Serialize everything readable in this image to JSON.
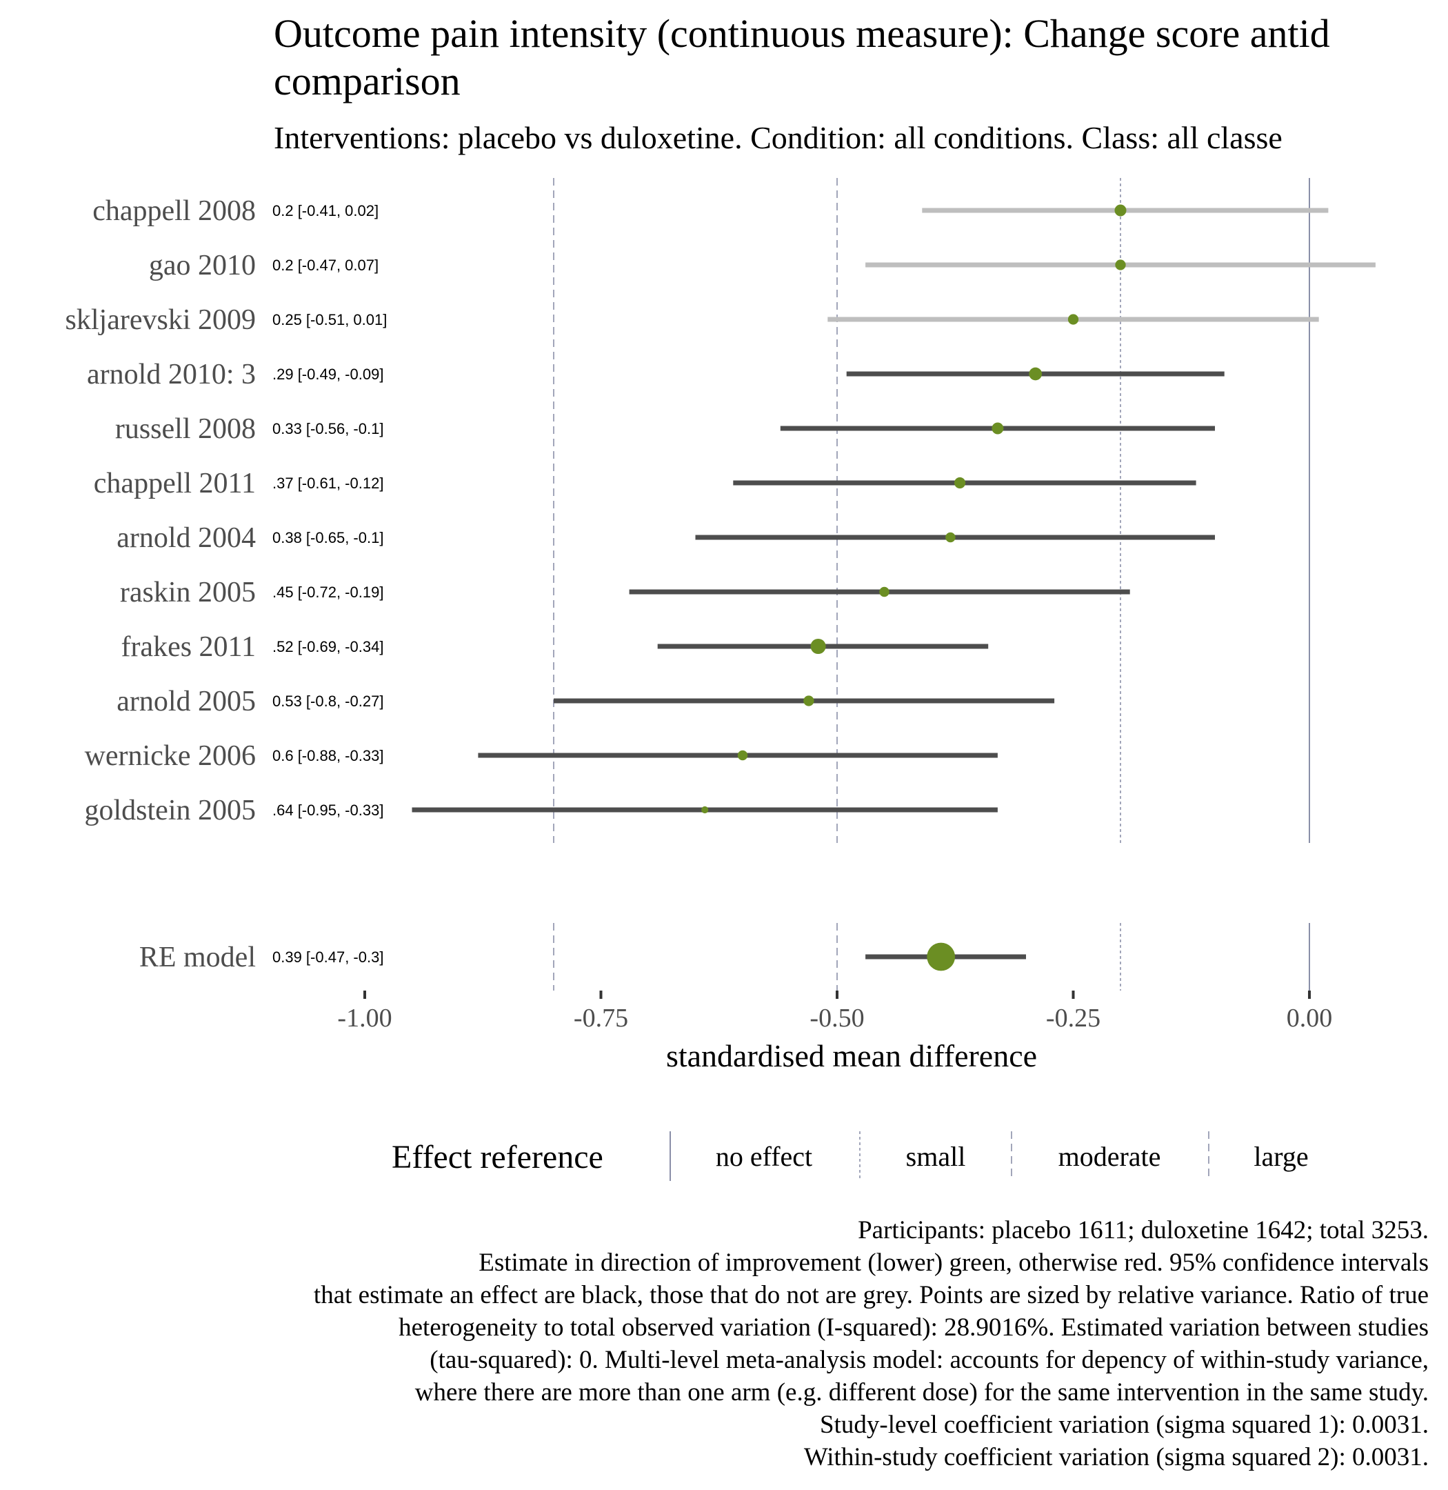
{
  "chart_data": {
    "type": "forest",
    "title_line1": "Outcome pain intensity (continuous measure): Change score antid",
    "title_line2": "comparison",
    "subtitle": "Interventions: placebo vs duloxetine. Condition: all conditions. Class: all classe",
    "xlabel": "standardised mean difference",
    "xlim": [
      -1.0,
      0.08
    ],
    "x_ticks": [
      -1.0,
      -0.75,
      -0.5,
      -0.25,
      0.0
    ],
    "x_tick_labels": [
      "-1.00",
      "-0.75",
      "-0.50",
      "-0.25",
      "0.00"
    ],
    "reference_lines": [
      {
        "value": 0.0,
        "type": "no effect",
        "style": "solid"
      },
      {
        "value": -0.2,
        "type": "small",
        "style": "dotted"
      },
      {
        "value": -0.5,
        "type": "moderate",
        "style": "dashed"
      },
      {
        "value": -0.8,
        "type": "large",
        "style": "dashed"
      }
    ],
    "studies": [
      {
        "name": "chappell 2008",
        "estimate": -0.2,
        "lower": -0.41,
        "upper": 0.02,
        "label": "0.2 [-0.41, 0.02]",
        "significant": false,
        "size": 1.0
      },
      {
        "name": "gao 2010",
        "estimate": -0.2,
        "lower": -0.47,
        "upper": 0.07,
        "label": "0.2 [-0.47, 0.07]",
        "significant": false,
        "size": 0.9
      },
      {
        "name": "skljarevski 2009",
        "estimate": -0.25,
        "lower": -0.51,
        "upper": 0.01,
        "label": "0.25 [-0.51, 0.01]",
        "significant": false,
        "size": 0.9
      },
      {
        "name": "arnold 2010: 3",
        "estimate": -0.29,
        "lower": -0.49,
        "upper": -0.09,
        "label": ".29 [-0.49, -0.09]",
        "significant": true,
        "size": 1.1
      },
      {
        "name": "russell 2008",
        "estimate": -0.33,
        "lower": -0.56,
        "upper": -0.1,
        "label": "0.33 [-0.56, -0.1]",
        "significant": true,
        "size": 1.0
      },
      {
        "name": "chappell 2011",
        "estimate": -0.37,
        "lower": -0.61,
        "upper": -0.12,
        "label": ".37 [-0.61, -0.12]",
        "significant": true,
        "size": 0.95
      },
      {
        "name": "arnold 2004",
        "estimate": -0.38,
        "lower": -0.65,
        "upper": -0.1,
        "label": "0.38 [-0.65, -0.1]",
        "significant": true,
        "size": 0.85
      },
      {
        "name": "raskin 2005",
        "estimate": -0.45,
        "lower": -0.72,
        "upper": -0.19,
        "label": ".45 [-0.72, -0.19]",
        "significant": true,
        "size": 0.85
      },
      {
        "name": "frakes 2011",
        "estimate": -0.52,
        "lower": -0.69,
        "upper": -0.34,
        "label": ".52 [-0.69, -0.34]",
        "significant": true,
        "size": 1.3
      },
      {
        "name": "arnold 2005",
        "estimate": -0.53,
        "lower": -0.8,
        "upper": -0.27,
        "label": "0.53 [-0.8, -0.27]",
        "significant": true,
        "size": 0.9
      },
      {
        "name": "wernicke 2006",
        "estimate": -0.6,
        "lower": -0.88,
        "upper": -0.33,
        "label": "0.6 [-0.88, -0.33]",
        "significant": true,
        "size": 0.85
      },
      {
        "name": "goldstein 2005",
        "estimate": -0.64,
        "lower": -0.95,
        "upper": -0.33,
        "label": ".64 [-0.95, -0.33]",
        "significant": true,
        "size": 0.6
      }
    ],
    "summary": {
      "name": "RE model",
      "estimate": -0.39,
      "lower": -0.47,
      "upper": -0.3,
      "label": "0.39 [-0.47, -0.3]",
      "significant": true,
      "size": 2.4
    },
    "legend": {
      "title": "Effect reference",
      "placement": "bottom",
      "items": [
        "no effect",
        "small",
        "moderate",
        "large"
      ]
    },
    "caption": [
      "Participants: placebo 1611; duloxetine 1642; total 3253.",
      "Estimate in direction of improvement (lower) green, otherwise red. 95% confidence intervals",
      "that estimate an effect are black, those that do not are grey. Points are sized by relative variance. Ratio of true",
      "heterogeneity to total observed variation (I-squared): 28.9016%. Estimated variation between studies",
      "(tau-squared): 0. Multi-level meta-analysis model: accounts for depency of within-study variance,",
      "where there are more than one arm (e.g. different dose) for the same intervention in the same study.",
      "Study-level coefficient variation (sigma squared 1): 0.0031.",
      "Within-study coefficient variation (sigma squared 2): 0.0031."
    ],
    "colors": {
      "point": "#6b8e23",
      "ci_significant": "#4d4d4d",
      "ci_nonsignificant": "#bebebe",
      "reference_line": "#8a8fa8",
      "text": "#4d4d4d"
    }
  }
}
